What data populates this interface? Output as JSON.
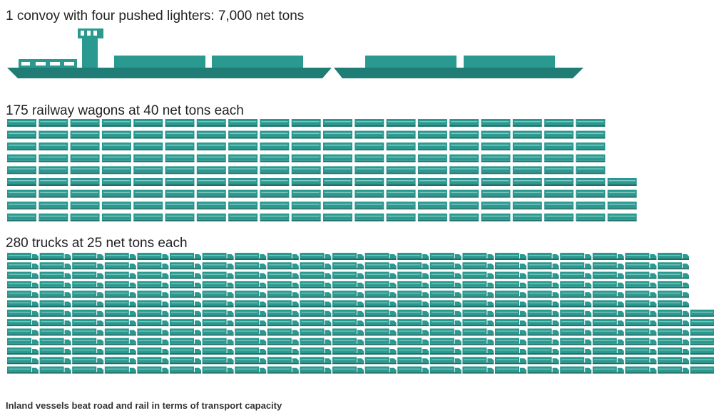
{
  "sections": [
    {
      "caption": "1 convoy with four pushed lighters: 7,000 net tons"
    },
    {
      "caption": "175 railway wagons at 40 net tons each",
      "count": 175
    },
    {
      "caption": "280 trucks at 25 net tons each",
      "count": 280
    }
  ],
  "footer": "Inland vessels beat road and rail in terms of transport capacity"
}
